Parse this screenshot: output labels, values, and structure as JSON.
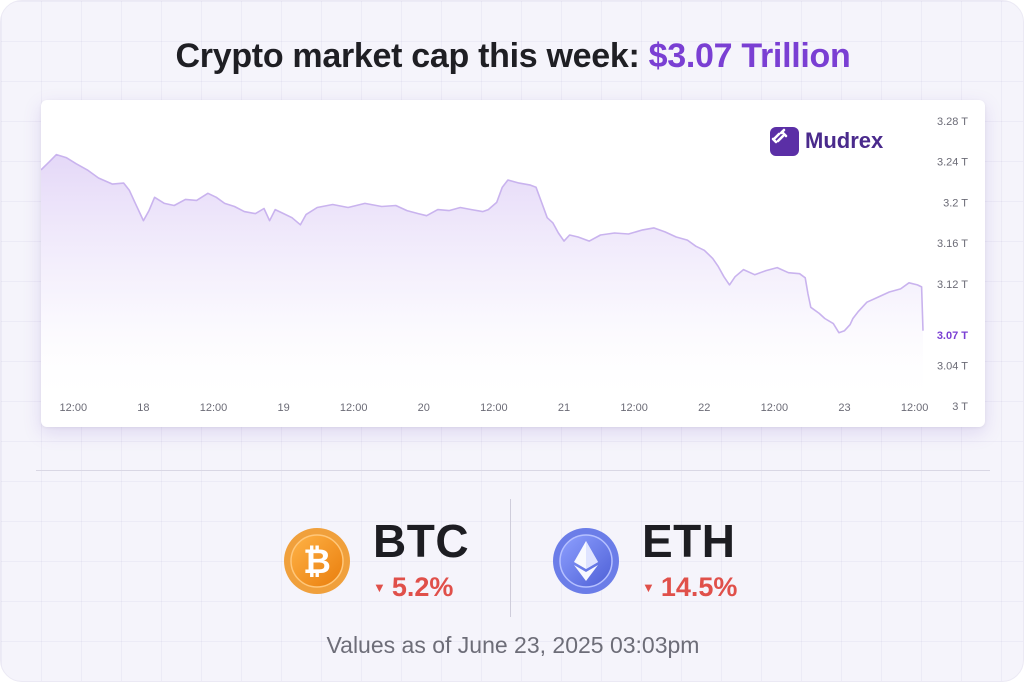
{
  "headline": {
    "prefix": "Crypto market cap this week: ",
    "value": "$3.07 Trillion"
  },
  "brand": {
    "name": "Mudrex"
  },
  "colors": {
    "accent": "#7a3fd3",
    "line": "#c9b3ee",
    "fill_top": "#e3d6f7",
    "down": "#e0504a",
    "btc": "#f7931a",
    "eth": "#6b7de8"
  },
  "chart_data": {
    "type": "area",
    "title": "",
    "xlabel": "",
    "ylabel": "",
    "ylim": [
      3.0,
      3.28
    ],
    "y_ticks": [
      {
        "value": 3.28,
        "label": "3.28 T"
      },
      {
        "value": 3.24,
        "label": "3.24 T"
      },
      {
        "value": 3.2,
        "label": "3.2 T"
      },
      {
        "value": 3.16,
        "label": "3.16 T"
      },
      {
        "value": 3.12,
        "label": "3.12 T"
      },
      {
        "value": 3.04,
        "label": "3.04 T"
      },
      {
        "value": 3.0,
        "label": "3 T"
      }
    ],
    "current": {
      "value": 3.07,
      "label": "3.07 T"
    },
    "x_ticks": [
      {
        "t": 0.5,
        "label": "12:00"
      },
      {
        "t": 1.0,
        "label": "18"
      },
      {
        "t": 1.5,
        "label": "12:00"
      },
      {
        "t": 2.0,
        "label": "19"
      },
      {
        "t": 2.5,
        "label": "12:00"
      },
      {
        "t": 3.0,
        "label": "20"
      },
      {
        "t": 3.5,
        "label": "12:00"
      },
      {
        "t": 4.0,
        "label": "21"
      },
      {
        "t": 4.5,
        "label": "12:00"
      },
      {
        "t": 5.0,
        "label": "22"
      },
      {
        "t": 5.5,
        "label": "12:00"
      },
      {
        "t": 6.0,
        "label": "23"
      },
      {
        "t": 6.5,
        "label": "12:00"
      }
    ],
    "x_range": [
      0.27,
      6.56
    ],
    "series": [
      {
        "points": [
          [
            0.27,
            3.232
          ],
          [
            0.33,
            3.24
          ],
          [
            0.38,
            3.247
          ],
          [
            0.45,
            3.244
          ],
          [
            0.52,
            3.238
          ],
          [
            0.6,
            3.232
          ],
          [
            0.68,
            3.224
          ],
          [
            0.78,
            3.218
          ],
          [
            0.86,
            3.219
          ],
          [
            0.9,
            3.212
          ],
          [
            0.94,
            3.2
          ],
          [
            0.98,
            3.188
          ],
          [
            1.0,
            3.182
          ],
          [
            1.04,
            3.192
          ],
          [
            1.08,
            3.205
          ],
          [
            1.15,
            3.199
          ],
          [
            1.22,
            3.197
          ],
          [
            1.3,
            3.203
          ],
          [
            1.38,
            3.202
          ],
          [
            1.46,
            3.209
          ],
          [
            1.52,
            3.205
          ],
          [
            1.58,
            3.199
          ],
          [
            1.65,
            3.196
          ],
          [
            1.72,
            3.191
          ],
          [
            1.8,
            3.189
          ],
          [
            1.86,
            3.194
          ],
          [
            1.9,
            3.182
          ],
          [
            1.94,
            3.193
          ],
          [
            2.0,
            3.189
          ],
          [
            2.06,
            3.185
          ],
          [
            2.12,
            3.178
          ],
          [
            2.16,
            3.188
          ],
          [
            2.24,
            3.195
          ],
          [
            2.35,
            3.198
          ],
          [
            2.46,
            3.195
          ],
          [
            2.58,
            3.199
          ],
          [
            2.7,
            3.196
          ],
          [
            2.8,
            3.197
          ],
          [
            2.88,
            3.192
          ],
          [
            2.96,
            3.189
          ],
          [
            3.02,
            3.187
          ],
          [
            3.1,
            3.193
          ],
          [
            3.18,
            3.192
          ],
          [
            3.26,
            3.195
          ],
          [
            3.34,
            3.193
          ],
          [
            3.42,
            3.191
          ],
          [
            3.46,
            3.193
          ],
          [
            3.52,
            3.2
          ],
          [
            3.56,
            3.215
          ],
          [
            3.6,
            3.222
          ],
          [
            3.68,
            3.219
          ],
          [
            3.76,
            3.217
          ],
          [
            3.8,
            3.215
          ],
          [
            3.84,
            3.2
          ],
          [
            3.88,
            3.185
          ],
          [
            3.92,
            3.18
          ],
          [
            3.96,
            3.17
          ],
          [
            4.0,
            3.162
          ],
          [
            4.04,
            3.168
          ],
          [
            4.1,
            3.166
          ],
          [
            4.18,
            3.162
          ],
          [
            4.26,
            3.168
          ],
          [
            4.36,
            3.17
          ],
          [
            4.46,
            3.169
          ],
          [
            4.56,
            3.173
          ],
          [
            4.64,
            3.175
          ],
          [
            4.72,
            3.171
          ],
          [
            4.8,
            3.166
          ],
          [
            4.88,
            3.163
          ],
          [
            4.94,
            3.157
          ],
          [
            5.0,
            3.153
          ],
          [
            5.06,
            3.145
          ],
          [
            5.1,
            3.137
          ],
          [
            5.14,
            3.127
          ],
          [
            5.18,
            3.119
          ],
          [
            5.22,
            3.127
          ],
          [
            5.28,
            3.134
          ],
          [
            5.36,
            3.129
          ],
          [
            5.44,
            3.133
          ],
          [
            5.52,
            3.136
          ],
          [
            5.6,
            3.131
          ],
          [
            5.68,
            3.13
          ],
          [
            5.72,
            3.126
          ],
          [
            5.74,
            3.11
          ],
          [
            5.76,
            3.097
          ],
          [
            5.82,
            3.091
          ],
          [
            5.86,
            3.086
          ],
          [
            5.92,
            3.081
          ],
          [
            5.96,
            3.072
          ],
          [
            6.0,
            3.074
          ],
          [
            6.04,
            3.08
          ],
          [
            6.06,
            3.086
          ],
          [
            6.1,
            3.093
          ],
          [
            6.16,
            3.102
          ],
          [
            6.24,
            3.107
          ],
          [
            6.32,
            3.112
          ],
          [
            6.4,
            3.115
          ],
          [
            6.46,
            3.121
          ],
          [
            6.52,
            3.119
          ],
          [
            6.55,
            3.117
          ],
          [
            6.56,
            3.074
          ]
        ]
      }
    ]
  },
  "coins": [
    {
      "symbol": "BTC",
      "change": "5.2%",
      "icon": "bitcoin-icon"
    },
    {
      "symbol": "ETH",
      "change": "14.5%",
      "icon": "ethereum-icon"
    }
  ],
  "footnote": "Values as of June 23, 2025 03:03pm"
}
